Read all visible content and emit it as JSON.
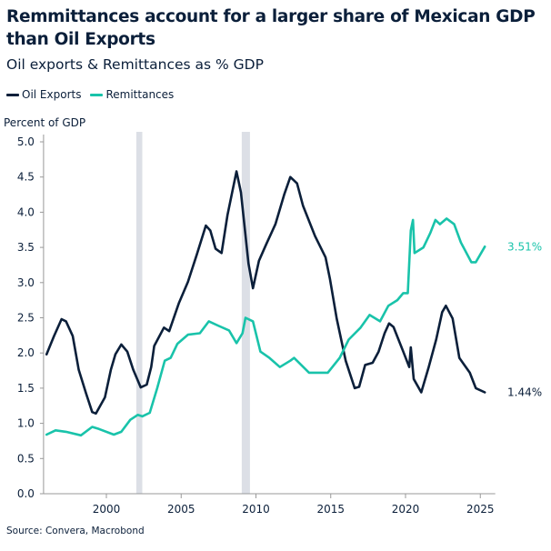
{
  "chart_data": {
    "type": "line",
    "title": "Remmittances account for a larger share of Mexican GDP than Oil Exports",
    "subtitle": "Oil exports & Remittances as % GDP",
    "ylabel": "Percent of GDP",
    "xlabel": "",
    "xlim": [
      1995.8,
      2026.0
    ],
    "ylim": [
      0,
      5.0
    ],
    "x_ticks": [
      2000,
      2005,
      2010,
      2015,
      2020,
      2025
    ],
    "y_ticks": [
      "0.0",
      "0.5",
      "1.0",
      "1.5",
      "2.0",
      "2.5",
      "3.0",
      "3.5",
      "4.0",
      "4.5",
      "5.0"
    ],
    "grid": false,
    "legend_position": "top-left",
    "shaded_periods": [
      [
        2002.0,
        2002.4
      ],
      [
        2009.05,
        2009.6
      ]
    ],
    "shade_color": "#dcdfe6",
    "series": [
      {
        "name": "Oil Exports",
        "color": "#0b1f3a",
        "end_label": "1.44%",
        "points": [
          [
            1996.0,
            1.98
          ],
          [
            1996.5,
            2.24
          ],
          [
            1997.0,
            2.48
          ],
          [
            1997.3,
            2.45
          ],
          [
            1997.75,
            2.24
          ],
          [
            1998.15,
            1.76
          ],
          [
            1998.65,
            1.42
          ],
          [
            1999.05,
            1.16
          ],
          [
            1999.3,
            1.14
          ],
          [
            1999.9,
            1.37
          ],
          [
            2000.3,
            1.76
          ],
          [
            2000.6,
            1.98
          ],
          [
            2001.0,
            2.12
          ],
          [
            2001.4,
            2.02
          ],
          [
            2001.8,
            1.76
          ],
          [
            2002.3,
            1.51
          ],
          [
            2002.7,
            1.55
          ],
          [
            2003.0,
            1.8
          ],
          [
            2003.2,
            2.1
          ],
          [
            2003.85,
            2.36
          ],
          [
            2004.2,
            2.31
          ],
          [
            2004.85,
            2.71
          ],
          [
            2005.45,
            3.01
          ],
          [
            2006.05,
            3.4
          ],
          [
            2006.65,
            3.81
          ],
          [
            2006.95,
            3.74
          ],
          [
            2007.3,
            3.48
          ],
          [
            2007.7,
            3.42
          ],
          [
            2008.1,
            3.96
          ],
          [
            2008.7,
            4.58
          ],
          [
            2009.0,
            4.28
          ],
          [
            2009.5,
            3.27
          ],
          [
            2009.8,
            2.92
          ],
          [
            2010.2,
            3.31
          ],
          [
            2010.7,
            3.55
          ],
          [
            2011.3,
            3.83
          ],
          [
            2011.9,
            4.26
          ],
          [
            2012.3,
            4.5
          ],
          [
            2012.75,
            4.41
          ],
          [
            2013.15,
            4.09
          ],
          [
            2013.95,
            3.66
          ],
          [
            2014.65,
            3.36
          ],
          [
            2014.95,
            3.05
          ],
          [
            2015.4,
            2.49
          ],
          [
            2016.0,
            1.89
          ],
          [
            2016.6,
            1.5
          ],
          [
            2016.9,
            1.52
          ],
          [
            2017.3,
            1.83
          ],
          [
            2017.8,
            1.86
          ],
          [
            2018.2,
            2.02
          ],
          [
            2018.6,
            2.28
          ],
          [
            2018.9,
            2.42
          ],
          [
            2019.2,
            2.37
          ],
          [
            2019.85,
            2.02
          ],
          [
            2020.25,
            1.8
          ],
          [
            2020.35,
            2.08
          ],
          [
            2020.55,
            1.63
          ],
          [
            2021.05,
            1.44
          ],
          [
            2021.55,
            1.8
          ],
          [
            2022.05,
            2.19
          ],
          [
            2022.45,
            2.58
          ],
          [
            2022.7,
            2.67
          ],
          [
            2023.15,
            2.49
          ],
          [
            2023.6,
            1.93
          ],
          [
            2024.3,
            1.72
          ],
          [
            2024.7,
            1.5
          ],
          [
            2025.3,
            1.44
          ]
        ]
      },
      {
        "name": "Remittances",
        "color": "#19c3aa",
        "end_label": "3.51%",
        "points": [
          [
            1996.0,
            0.84
          ],
          [
            1996.6,
            0.9
          ],
          [
            1997.3,
            0.88
          ],
          [
            1998.3,
            0.83
          ],
          [
            1999.05,
            0.95
          ],
          [
            1999.5,
            0.92
          ],
          [
            2000.5,
            0.84
          ],
          [
            2001.0,
            0.88
          ],
          [
            2001.6,
            1.05
          ],
          [
            2002.1,
            1.12
          ],
          [
            2002.4,
            1.1
          ],
          [
            2002.9,
            1.15
          ],
          [
            2003.4,
            1.5
          ],
          [
            2003.9,
            1.89
          ],
          [
            2004.3,
            1.93
          ],
          [
            2004.75,
            2.13
          ],
          [
            2005.45,
            2.26
          ],
          [
            2006.25,
            2.28
          ],
          [
            2006.85,
            2.45
          ],
          [
            2007.45,
            2.39
          ],
          [
            2008.2,
            2.32
          ],
          [
            2008.7,
            2.14
          ],
          [
            2009.1,
            2.28
          ],
          [
            2009.3,
            2.5
          ],
          [
            2009.8,
            2.45
          ],
          [
            2010.3,
            2.02
          ],
          [
            2010.9,
            1.93
          ],
          [
            2011.6,
            1.8
          ],
          [
            2012.3,
            1.89
          ],
          [
            2012.55,
            1.93
          ],
          [
            2013.55,
            1.72
          ],
          [
            2014.8,
            1.72
          ],
          [
            2015.6,
            1.93
          ],
          [
            2016.2,
            2.19
          ],
          [
            2017.0,
            2.36
          ],
          [
            2017.6,
            2.54
          ],
          [
            2018.3,
            2.45
          ],
          [
            2018.85,
            2.67
          ],
          [
            2019.45,
            2.75
          ],
          [
            2019.85,
            2.85
          ],
          [
            2020.15,
            2.85
          ],
          [
            2020.35,
            3.74
          ],
          [
            2020.5,
            3.89
          ],
          [
            2020.6,
            3.42
          ],
          [
            2021.2,
            3.5
          ],
          [
            2021.65,
            3.7
          ],
          [
            2022.0,
            3.89
          ],
          [
            2022.3,
            3.83
          ],
          [
            2022.75,
            3.91
          ],
          [
            2023.25,
            3.83
          ],
          [
            2023.7,
            3.57
          ],
          [
            2024.4,
            3.29
          ],
          [
            2024.7,
            3.29
          ],
          [
            2025.3,
            3.51
          ]
        ]
      }
    ],
    "source": "Source: Convera, Macrobond"
  }
}
